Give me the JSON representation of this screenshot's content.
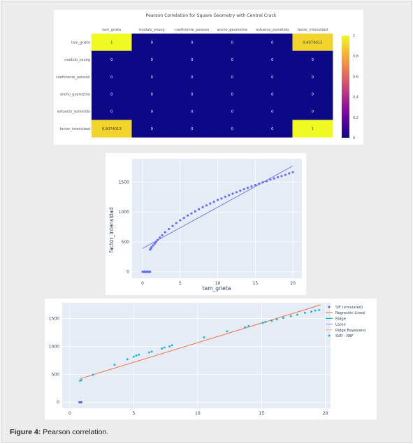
{
  "caption": {
    "label": "Figure 4:",
    "text": "Pearson correlation."
  },
  "chart_data": [
    {
      "type": "heatmap",
      "title": "Pearson Correlation for Square Geometry with Central Crack",
      "columns": [
        "tam_grieta",
        "modulo_young",
        "coeficiente_poisson",
        "ancho_geometria",
        "esfuerzo_sometido",
        "factor_intensidad"
      ],
      "rows": [
        "tam_grieta",
        "modulo_young",
        "coeficiente_poisson",
        "ancho_geometria",
        "esfuerzo_sometido",
        "factor_intensidad"
      ],
      "values": [
        [
          1,
          0,
          0,
          0,
          0,
          0.9074013
        ],
        [
          0,
          0,
          0,
          0,
          0,
          0
        ],
        [
          0,
          0,
          0,
          0,
          0,
          0
        ],
        [
          0,
          0,
          0,
          0,
          0,
          0
        ],
        [
          0,
          0,
          0,
          0,
          0,
          0
        ],
        [
          0.9074013,
          0,
          0,
          0,
          0,
          1
        ]
      ],
      "cell_labels": [
        [
          "1",
          "0",
          "0",
          "0",
          "0",
          "0.9074013"
        ],
        [
          "0",
          "0",
          "0",
          "0",
          "0",
          "0"
        ],
        [
          "0",
          "0",
          "0",
          "0",
          "0",
          "0"
        ],
        [
          "0",
          "0",
          "0",
          "0",
          "0",
          "0"
        ],
        [
          "0",
          "0",
          "0",
          "0",
          "0",
          "0"
        ],
        [
          "0.9074013",
          "0",
          "0",
          "0",
          "0",
          "1"
        ]
      ],
      "colorscale": "plasma",
      "colorbar_range": [
        0,
        1
      ],
      "colorbar_ticks": [
        "0",
        "0.2",
        "0.4",
        "0.6",
        "0.8",
        "1"
      ]
    },
    {
      "type": "scatter",
      "xlabel": "tam_grieta",
      "ylabel": "factor_intensidad",
      "xlim": [
        -1.4,
        21.2
      ],
      "ylim": [
        -110,
        1890
      ],
      "x_ticks": [
        "0",
        "5",
        "10",
        "15",
        "20"
      ],
      "y_ticks": [
        "0",
        "500",
        "1000",
        "1500"
      ],
      "grid": true,
      "background": "#e5ecf6",
      "point_color": "#636efa",
      "series": [
        {
          "kind": "points",
          "x": [
            0,
            0.1,
            0.2,
            0.3,
            0.4,
            0.5,
            0.6,
            0.7,
            0.8,
            0.9,
            1.0,
            1.0,
            1.1,
            1.2,
            1.4,
            1.6,
            1.8,
            2.0,
            2.3,
            2.6,
            3.0,
            3.5,
            4.0,
            4.5,
            5.0,
            5.5,
            6.0,
            6.5,
            7.0,
            7.5,
            8.0,
            8.5,
            9.0,
            9.5,
            10.0,
            10.5,
            11.0,
            11.5,
            12.0,
            12.5,
            13.0,
            13.5,
            14.0,
            14.5,
            15.0,
            15.5,
            16.0,
            16.5,
            17.0,
            17.5,
            18.0,
            18.5,
            19.0,
            19.5,
            20.0
          ],
          "y": [
            0,
            0,
            0,
            0,
            0,
            0,
            0,
            0,
            0,
            0,
            0,
            370,
            390,
            410,
            440,
            470,
            500,
            530,
            570,
            610,
            660,
            715,
            765,
            815,
            860,
            900,
            940,
            975,
            1010,
            1045,
            1080,
            1110,
            1140,
            1170,
            1200,
            1225,
            1255,
            1280,
            1305,
            1330,
            1355,
            1380,
            1405,
            1425,
            1450,
            1470,
            1495,
            1515,
            1540,
            1560,
            1580,
            1600,
            1620,
            1645,
            1665
          ]
        },
        {
          "kind": "trendline",
          "x": [
            0,
            20
          ],
          "y": [
            390,
            1770
          ]
        }
      ]
    },
    {
      "type": "line",
      "x_ticks": [
        "0",
        "5",
        "10",
        "15",
        "20"
      ],
      "y_ticks": [
        "0",
        "500",
        "1000",
        "1500"
      ],
      "xlim": [
        -0.6,
        20.4
      ],
      "ylim": [
        -110,
        1780
      ],
      "grid": true,
      "background": "#e5ecf6",
      "legend_position": "right",
      "series": [
        {
          "name": "SIF (simulated)",
          "color": "#5b5fcb",
          "kind": "points",
          "x": [
            0.75,
            0.8,
            0.85,
            0.9
          ],
          "y": [
            0,
            0,
            0,
            0
          ]
        },
        {
          "name": "Regresión Lineal",
          "color": "#ef7d55",
          "kind": "line",
          "x": [
            0.8,
            19.6
          ],
          "y": [
            420,
            1740
          ]
        },
        {
          "name": "Ridge",
          "color": "#00c29f",
          "kind": "legend-only"
        },
        {
          "name": "Lasso",
          "color": "#b39bf0",
          "kind": "legend-only"
        },
        {
          "name": "Ridge Bayesiano",
          "color": "#f5b38a",
          "kind": "legend-only"
        },
        {
          "name": "SVR - RBF",
          "color": "#1fb8d8",
          "kind": "points",
          "x": [
            0.8,
            0.9,
            1.8,
            3.5,
            4.5,
            5.0,
            5.2,
            5.4,
            6.2,
            6.4,
            7.2,
            7.4,
            7.8,
            8.0,
            10.5,
            12.3,
            13.7,
            14.0,
            15.1,
            15.3,
            15.8,
            16.2,
            16.7,
            17.3,
            17.8,
            18.4,
            18.9,
            19.2,
            19.5
          ],
          "y": [
            385,
            395,
            490,
            670,
            770,
            815,
            835,
            850,
            890,
            905,
            960,
            980,
            1000,
            1020,
            1160,
            1270,
            1340,
            1360,
            1420,
            1435,
            1460,
            1485,
            1510,
            1540,
            1565,
            1600,
            1620,
            1640,
            1650
          ]
        }
      ]
    }
  ]
}
